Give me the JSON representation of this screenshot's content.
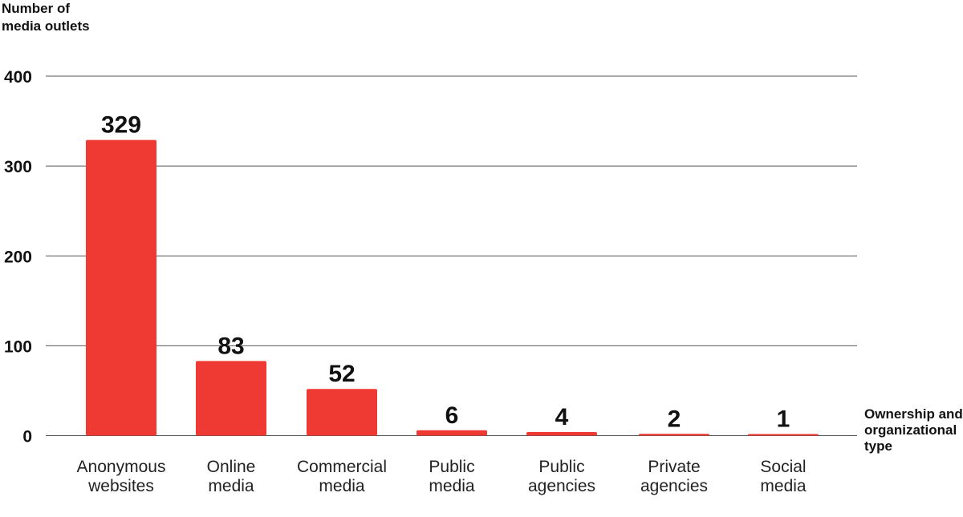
{
  "chart_data": {
    "type": "bar",
    "ylabel": "Number of\nmedia outlets",
    "xlabel": "Ownership and\norganizational\ntype",
    "categories": [
      [
        "Anonymous",
        "websites"
      ],
      [
        "Online",
        "media"
      ],
      [
        "Commercial",
        "media"
      ],
      [
        "Public",
        "media"
      ],
      [
        "Public",
        "agencies"
      ],
      [
        "Private",
        "agencies"
      ],
      [
        "Social",
        "media"
      ]
    ],
    "values": [
      329,
      83,
      52,
      6,
      4,
      2,
      1
    ],
    "data_labels": [
      "329",
      "83",
      "52",
      "6",
      "4",
      "2",
      "1"
    ],
    "yticks": [
      "0",
      "100",
      "200",
      "300",
      "400"
    ],
    "ylim": [
      0,
      400
    ],
    "grid": true,
    "bar_color": "#ee3a32",
    "grid_color": "#555555"
  }
}
